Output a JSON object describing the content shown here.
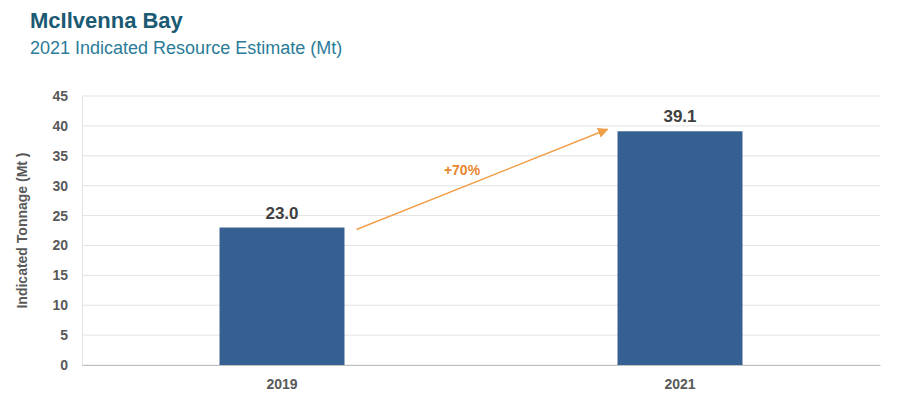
{
  "chart_data": {
    "type": "bar",
    "title": "McIlvenna Bay",
    "subtitle": "2021 Indicated Resource Estimate (Mt)",
    "y_label": "Indicated Tonnage (Mt )",
    "categories": [
      "2019",
      "2021"
    ],
    "values": [
      23.0,
      39.1
    ],
    "value_labels": [
      "23.0",
      "39.1"
    ],
    "data_labels": true,
    "color": "#376092",
    "ylim": [
      0,
      45
    ],
    "yticks": [
      0,
      5,
      10,
      15,
      20,
      25,
      30,
      35,
      40,
      45
    ],
    "grid": true,
    "annotation": "+70%"
  }
}
